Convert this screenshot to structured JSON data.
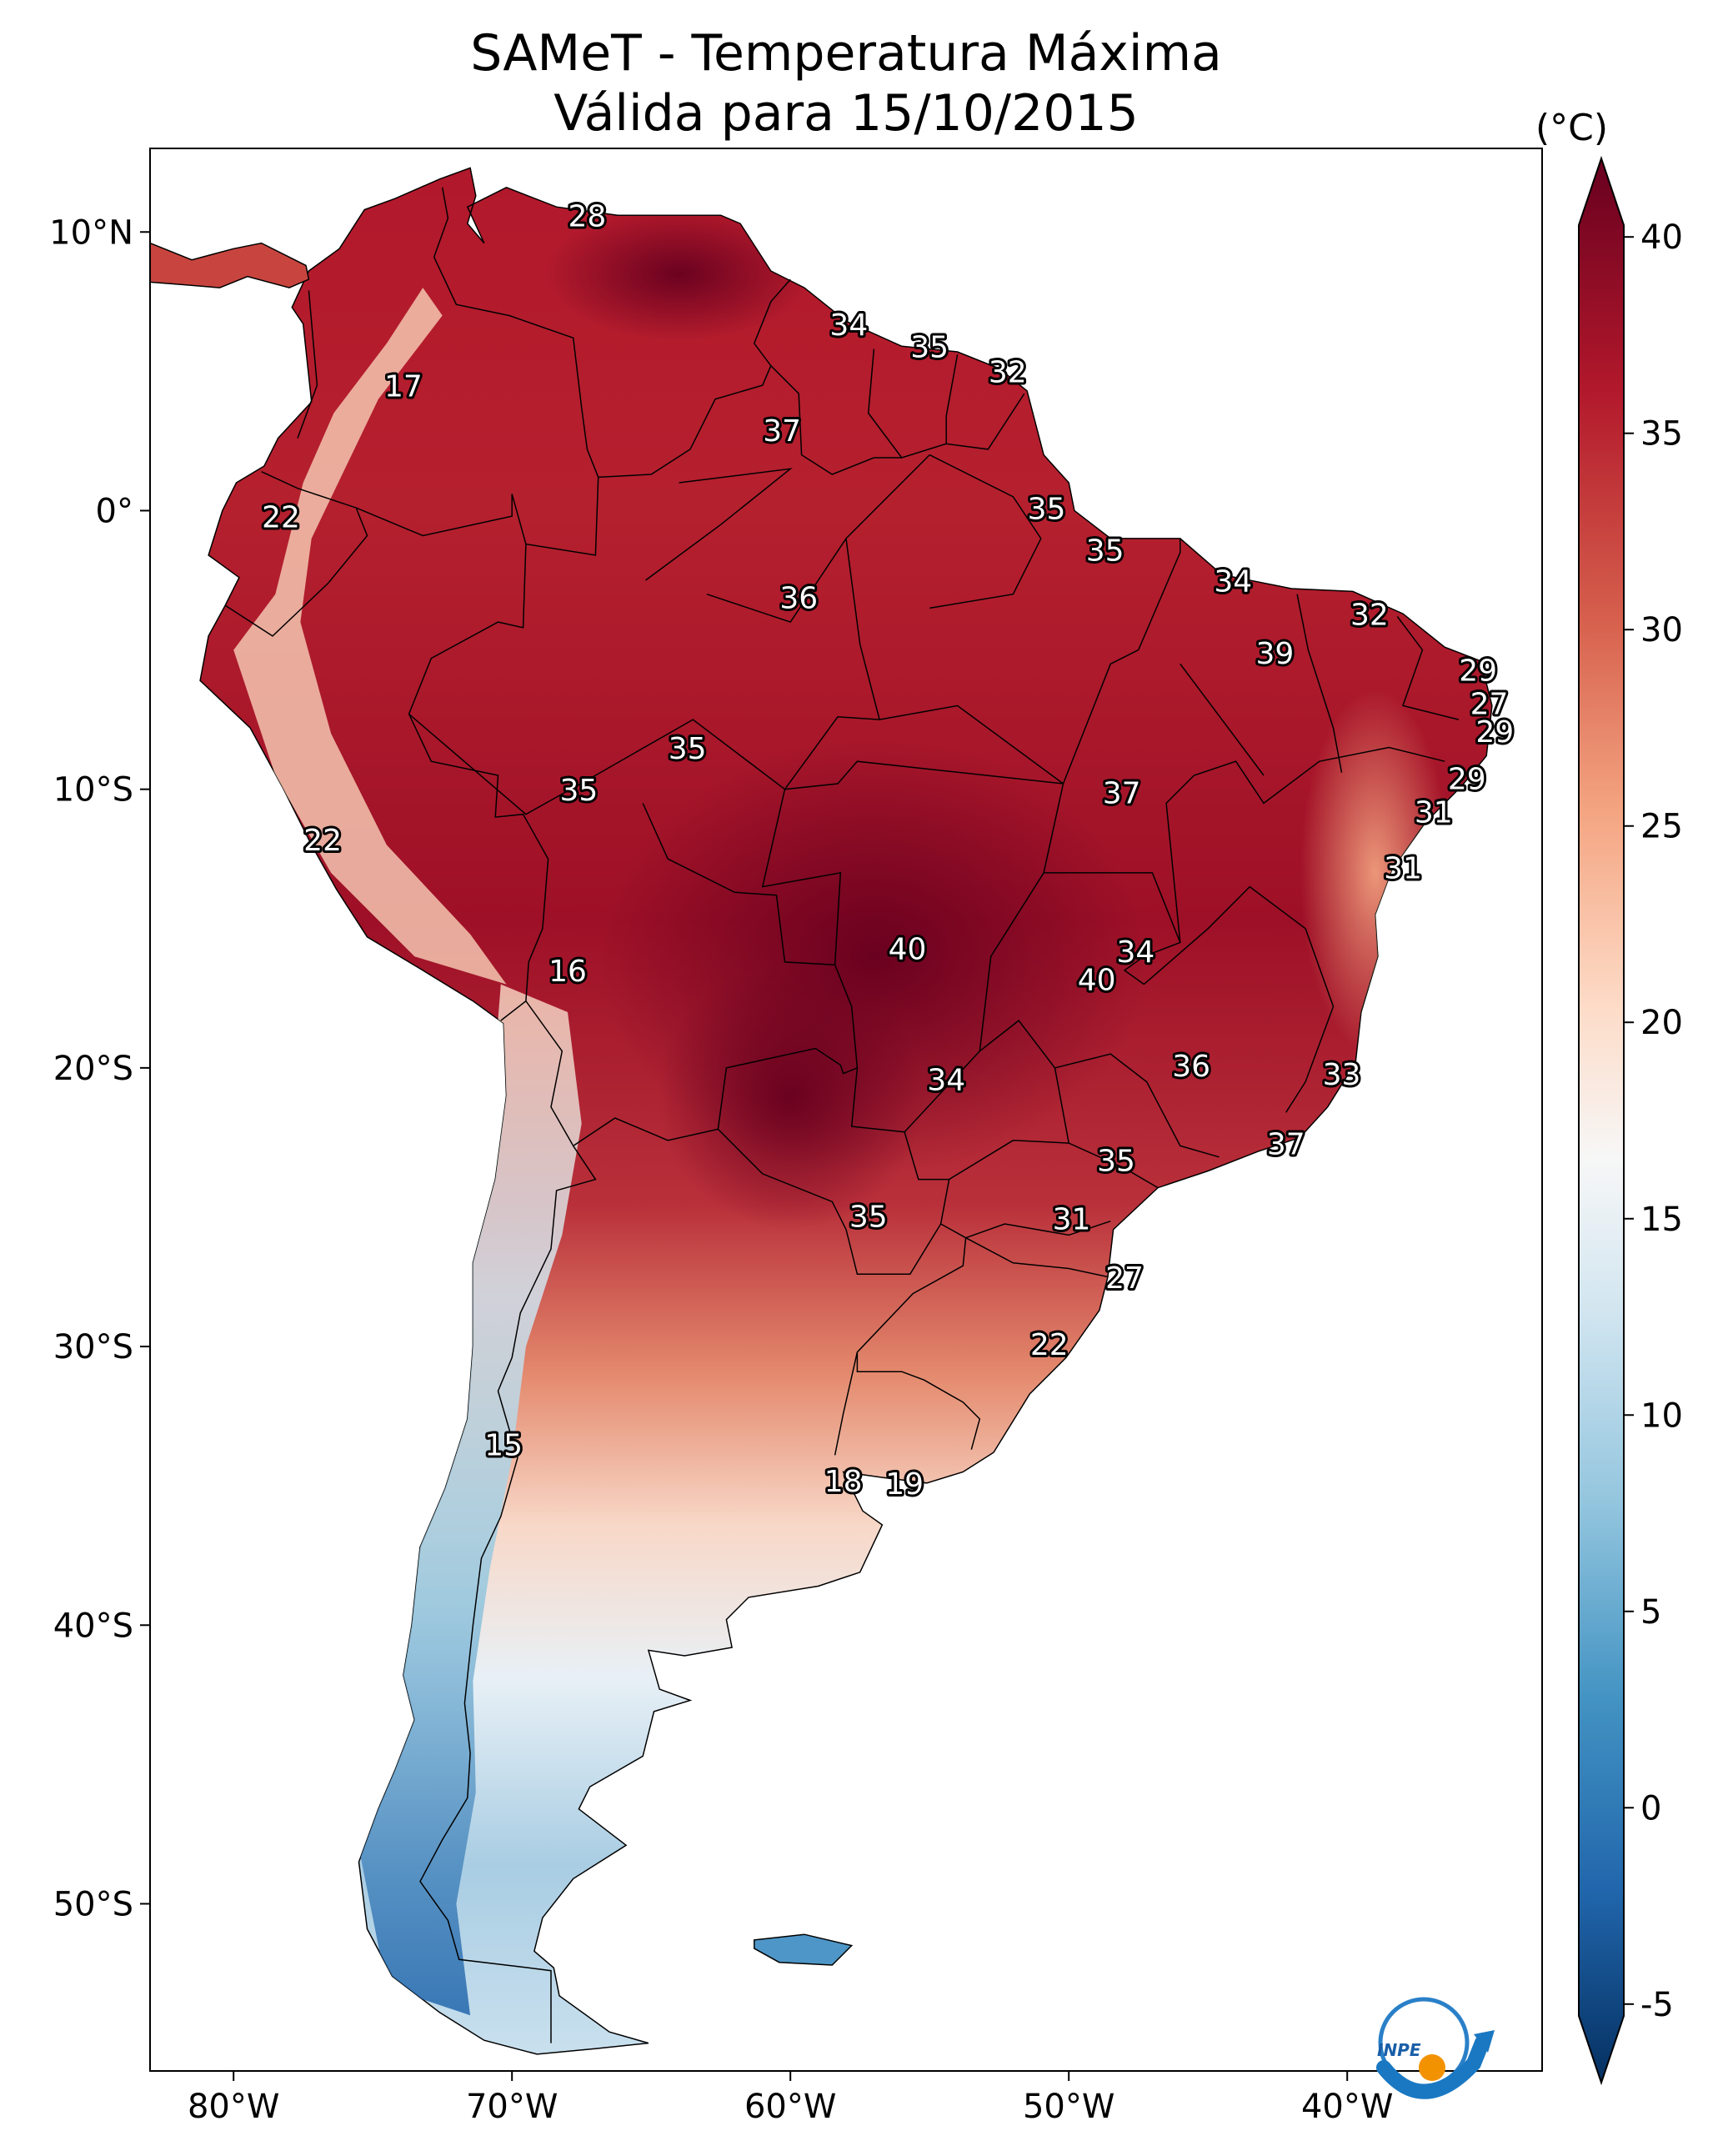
{
  "title": {
    "line1": "SAMeT - Temperatura Máxima",
    "line2": "Válida para 15/10/2015"
  },
  "colorbar": {
    "unit": "(°C)",
    "min": -7,
    "max": 42,
    "ticks": [
      -5,
      0,
      5,
      10,
      15,
      20,
      25,
      30,
      35,
      40
    ],
    "extend": "both",
    "colormap": "RdBu_r",
    "colors": [
      "#053061",
      "#2166ac",
      "#4393c3",
      "#92c5de",
      "#d1e5f0",
      "#f7f7f7",
      "#fddbc7",
      "#f4a582",
      "#d6604d",
      "#b2182b",
      "#67001f"
    ]
  },
  "axes": {
    "lon_ticks": [
      "80°W",
      "70°W",
      "60°W",
      "50°W",
      "40°W"
    ],
    "lat_ticks": [
      "10°N",
      "0°",
      "10°S",
      "20°S",
      "30°S",
      "40°S",
      "50°S"
    ]
  },
  "labels": [
    {
      "value": "28",
      "lon": -67.3,
      "lat": 10.5
    },
    {
      "value": "17",
      "lon": -73.9,
      "lat": 4.4
    },
    {
      "value": "22",
      "lon": -78.3,
      "lat": -0.3
    },
    {
      "value": "34",
      "lon": -57.9,
      "lat": 6.6
    },
    {
      "value": "35",
      "lon": -55.0,
      "lat": 5.8
    },
    {
      "value": "32",
      "lon": -52.2,
      "lat": 4.9
    },
    {
      "value": "37",
      "lon": -60.3,
      "lat": 2.8
    },
    {
      "value": "35",
      "lon": -50.8,
      "lat": 0.0
    },
    {
      "value": "35",
      "lon": -48.7,
      "lat": -1.5
    },
    {
      "value": "34",
      "lon": -44.1,
      "lat": -2.6
    },
    {
      "value": "36",
      "lon": -59.7,
      "lat": -3.2
    },
    {
      "value": "32",
      "lon": -39.2,
      "lat": -3.8
    },
    {
      "value": "39",
      "lon": -42.6,
      "lat": -5.2
    },
    {
      "value": "29",
      "lon": -35.3,
      "lat": -5.8
    },
    {
      "value": "27",
      "lon": -34.9,
      "lat": -7.0
    },
    {
      "value": "29",
      "lon": -34.7,
      "lat": -8.0
    },
    {
      "value": "35",
      "lon": -63.7,
      "lat": -8.6
    },
    {
      "value": "29",
      "lon": -35.7,
      "lat": -9.7
    },
    {
      "value": "37",
      "lon": -48.1,
      "lat": -10.2
    },
    {
      "value": "35",
      "lon": -67.6,
      "lat": -10.1
    },
    {
      "value": "31",
      "lon": -36.9,
      "lat": -10.9
    },
    {
      "value": "22",
      "lon": -76.8,
      "lat": -11.9
    },
    {
      "value": "31",
      "lon": -38.0,
      "lat": -12.9
    },
    {
      "value": "40",
      "lon": -55.8,
      "lat": -15.8
    },
    {
      "value": "34",
      "lon": -47.6,
      "lat": -15.9
    },
    {
      "value": "40",
      "lon": -49.0,
      "lat": -16.9
    },
    {
      "value": "16",
      "lon": -68.0,
      "lat": -16.6
    },
    {
      "value": "36",
      "lon": -45.6,
      "lat": -20.0
    },
    {
      "value": "33",
      "lon": -40.2,
      "lat": -20.3
    },
    {
      "value": "34",
      "lon": -54.4,
      "lat": -20.5
    },
    {
      "value": "37",
      "lon": -42.2,
      "lat": -22.8
    },
    {
      "value": "35",
      "lon": -48.3,
      "lat": -23.4
    },
    {
      "value": "35",
      "lon": -57.2,
      "lat": -25.4
    },
    {
      "value": "31",
      "lon": -49.9,
      "lat": -25.5
    },
    {
      "value": "27",
      "lon": -48.0,
      "lat": -27.6
    },
    {
      "value": "22",
      "lon": -50.7,
      "lat": -30.0
    },
    {
      "value": "15",
      "lon": -70.3,
      "lat": -33.6
    },
    {
      "value": "18",
      "lon": -58.1,
      "lat": -34.9
    },
    {
      "value": "19",
      "lon": -55.9,
      "lat": -35.0
    }
  ],
  "logo": {
    "text": "INPE"
  }
}
